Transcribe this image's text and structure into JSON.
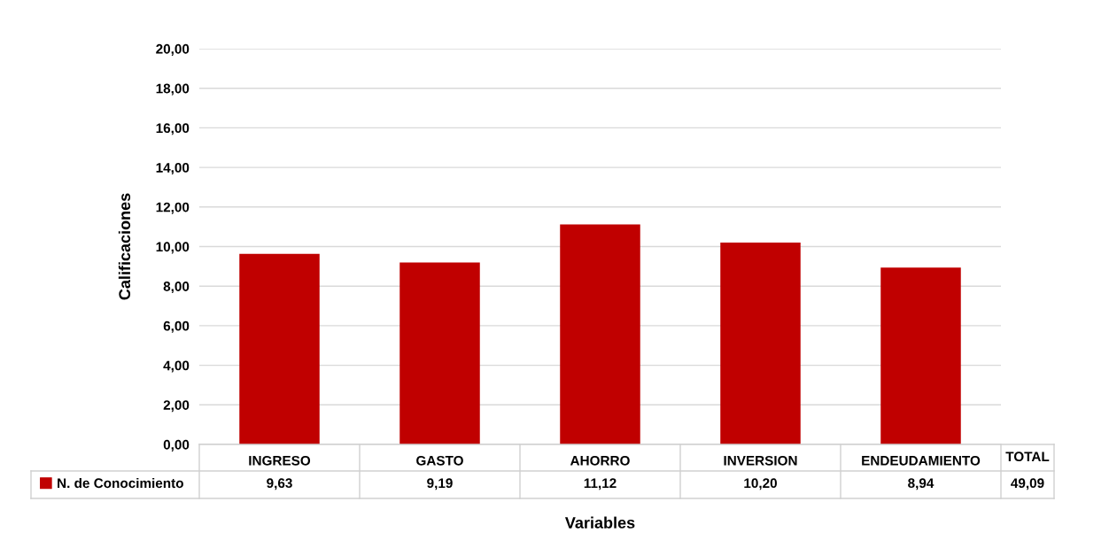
{
  "chart_data": {
    "type": "bar",
    "ylabel": "Calificaciones",
    "xlabel": "Variables",
    "categories": [
      "INGRESO",
      "GASTO",
      "AHORRO",
      "INVERSION",
      "ENDEUDAMIENTO"
    ],
    "series": [
      {
        "name": "N. de Conocimiento",
        "color": "#c00000",
        "values": [
          9.63,
          9.19,
          11.12,
          10.2,
          8.94
        ],
        "value_labels": [
          "9,63",
          "9,19",
          "11,12",
          "10,20",
          "8,94"
        ]
      }
    ],
    "ylim": [
      0,
      20
    ],
    "yticks": [
      {
        "value": 0,
        "label": "0,00"
      },
      {
        "value": 2,
        "label": "2,00"
      },
      {
        "value": 4,
        "label": "4,00"
      },
      {
        "value": 6,
        "label": "6,00"
      },
      {
        "value": 8,
        "label": "8,00"
      },
      {
        "value": 10,
        "label": "10,00"
      },
      {
        "value": 12,
        "label": "12,00"
      },
      {
        "value": 14,
        "label": "14,00"
      },
      {
        "value": 16,
        "label": "16,00"
      },
      {
        "value": 18,
        "label": "18,00"
      },
      {
        "value": 20,
        "label": "20,00"
      }
    ],
    "grid": "y",
    "legend": "bottom left",
    "annotations": [
      "TOTAL",
      "49,09"
    ]
  }
}
